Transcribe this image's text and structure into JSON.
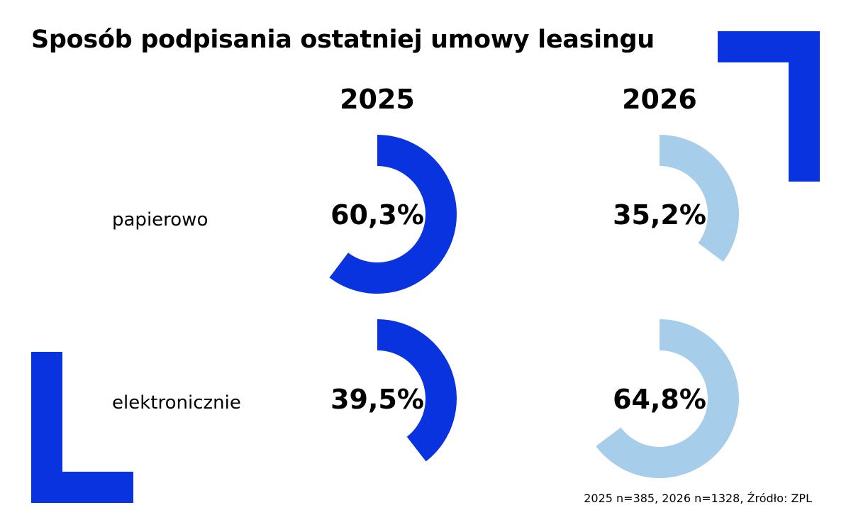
{
  "title": "Sposób podpisania ostatniej umowy leasingu",
  "footnote": "2025 n=385, 2026 n=1328, Źródło: ZPL",
  "colors": {
    "y2025": "#0a33e0",
    "y2026": "#a6ceea",
    "accent": "#0a33e0",
    "text": "#000000"
  },
  "chart_data": {
    "type": "pie",
    "columns": [
      "2025",
      "2026"
    ],
    "rows": [
      "papierowo",
      "elektronicznie"
    ],
    "unit": "%",
    "values": [
      {
        "row": "papierowo",
        "column": "2025",
        "value": 60.3,
        "label": "60,3%"
      },
      {
        "row": "papierowo",
        "column": "2026",
        "value": 35.2,
        "label": "35,2%"
      },
      {
        "row": "elektronicznie",
        "column": "2025",
        "value": 39.5,
        "label": "39,5%"
      },
      {
        "row": "elektronicznie",
        "column": "2026",
        "value": 64.8,
        "label": "64,8%"
      }
    ]
  }
}
